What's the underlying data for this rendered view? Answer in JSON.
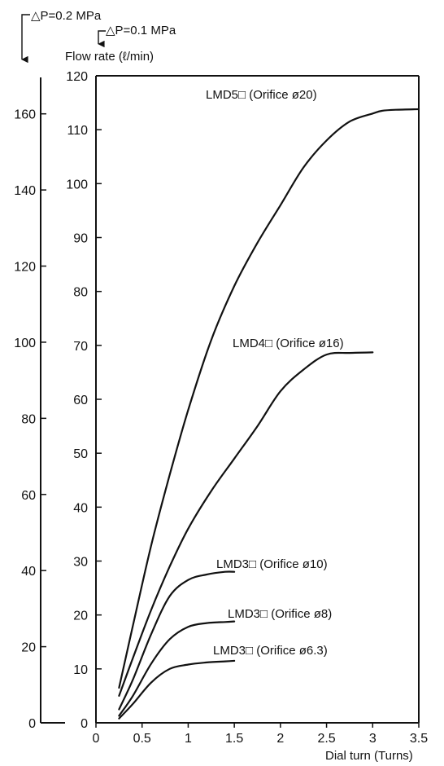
{
  "chart_data": {
    "type": "line",
    "title": "",
    "xlabel": "Dial turn (Turns)",
    "ylabel": "Flow rate (ℓ/min)",
    "xlim": [
      0,
      3.5
    ],
    "ylim": [
      0,
      120
    ],
    "x_ticks": [
      "0",
      "0.5",
      "1",
      "1.5",
      "2",
      "2.5",
      "3",
      "3.5"
    ],
    "y_ticks": [
      "0",
      "10",
      "20",
      "30",
      "40",
      "50",
      "60",
      "70",
      "80",
      "90",
      "100",
      "110",
      "120"
    ],
    "secondary_axis": {
      "ylim": [
        0,
        170
      ],
      "ticks": [
        "0",
        "20",
        "40",
        "60",
        "80",
        "100",
        "120",
        "140",
        "160"
      ]
    },
    "pressure_labels": {
      "secondary": "△P=0.2 MPa",
      "primary": "△P=0.1 MPa"
    },
    "grid": false,
    "series": [
      {
        "name": "LMD5□ (Orifice ø20)",
        "x": [
          0.25,
          0.4,
          0.6,
          0.8,
          1.0,
          1.25,
          1.5,
          1.75,
          2.0,
          2.25,
          2.5,
          2.75,
          3.0,
          3.1,
          3.25,
          3.5
        ],
        "y": [
          6.5,
          18,
          33,
          46,
          58,
          71,
          81,
          89,
          96,
          103,
          108,
          111.5,
          113,
          113.5,
          113.7,
          113.8
        ]
      },
      {
        "name": "LMD4□ (Orifice ø16)",
        "x": [
          0.25,
          0.4,
          0.6,
          0.8,
          1.0,
          1.25,
          1.5,
          1.75,
          2.0,
          2.25,
          2.5,
          2.75,
          3.0
        ],
        "y": [
          5,
          12,
          21,
          29,
          36,
          43,
          49,
          55,
          61.5,
          65.5,
          68.3,
          68.6,
          68.7
        ]
      },
      {
        "name": "LMD3□ (Orifice ø10)",
        "x": [
          0.25,
          0.4,
          0.6,
          0.8,
          1.0,
          1.2,
          1.4,
          1.5
        ],
        "y": [
          2.5,
          8,
          16.5,
          23.5,
          26.5,
          27.5,
          28,
          28
        ]
      },
      {
        "name": "LMD3□ (Orifice ø8)",
        "x": [
          0.25,
          0.4,
          0.6,
          0.8,
          1.0,
          1.2,
          1.4,
          1.5
        ],
        "y": [
          1.3,
          5,
          11,
          15.5,
          17.8,
          18.5,
          18.7,
          18.8
        ]
      },
      {
        "name": "LMD3□ (Orifice ø6.3)",
        "x": [
          0.25,
          0.4,
          0.6,
          0.8,
          1.0,
          1.2,
          1.4,
          1.5
        ],
        "y": [
          0.8,
          3.5,
          7.5,
          10,
          10.8,
          11.2,
          11.4,
          11.5
        ]
      }
    ]
  }
}
